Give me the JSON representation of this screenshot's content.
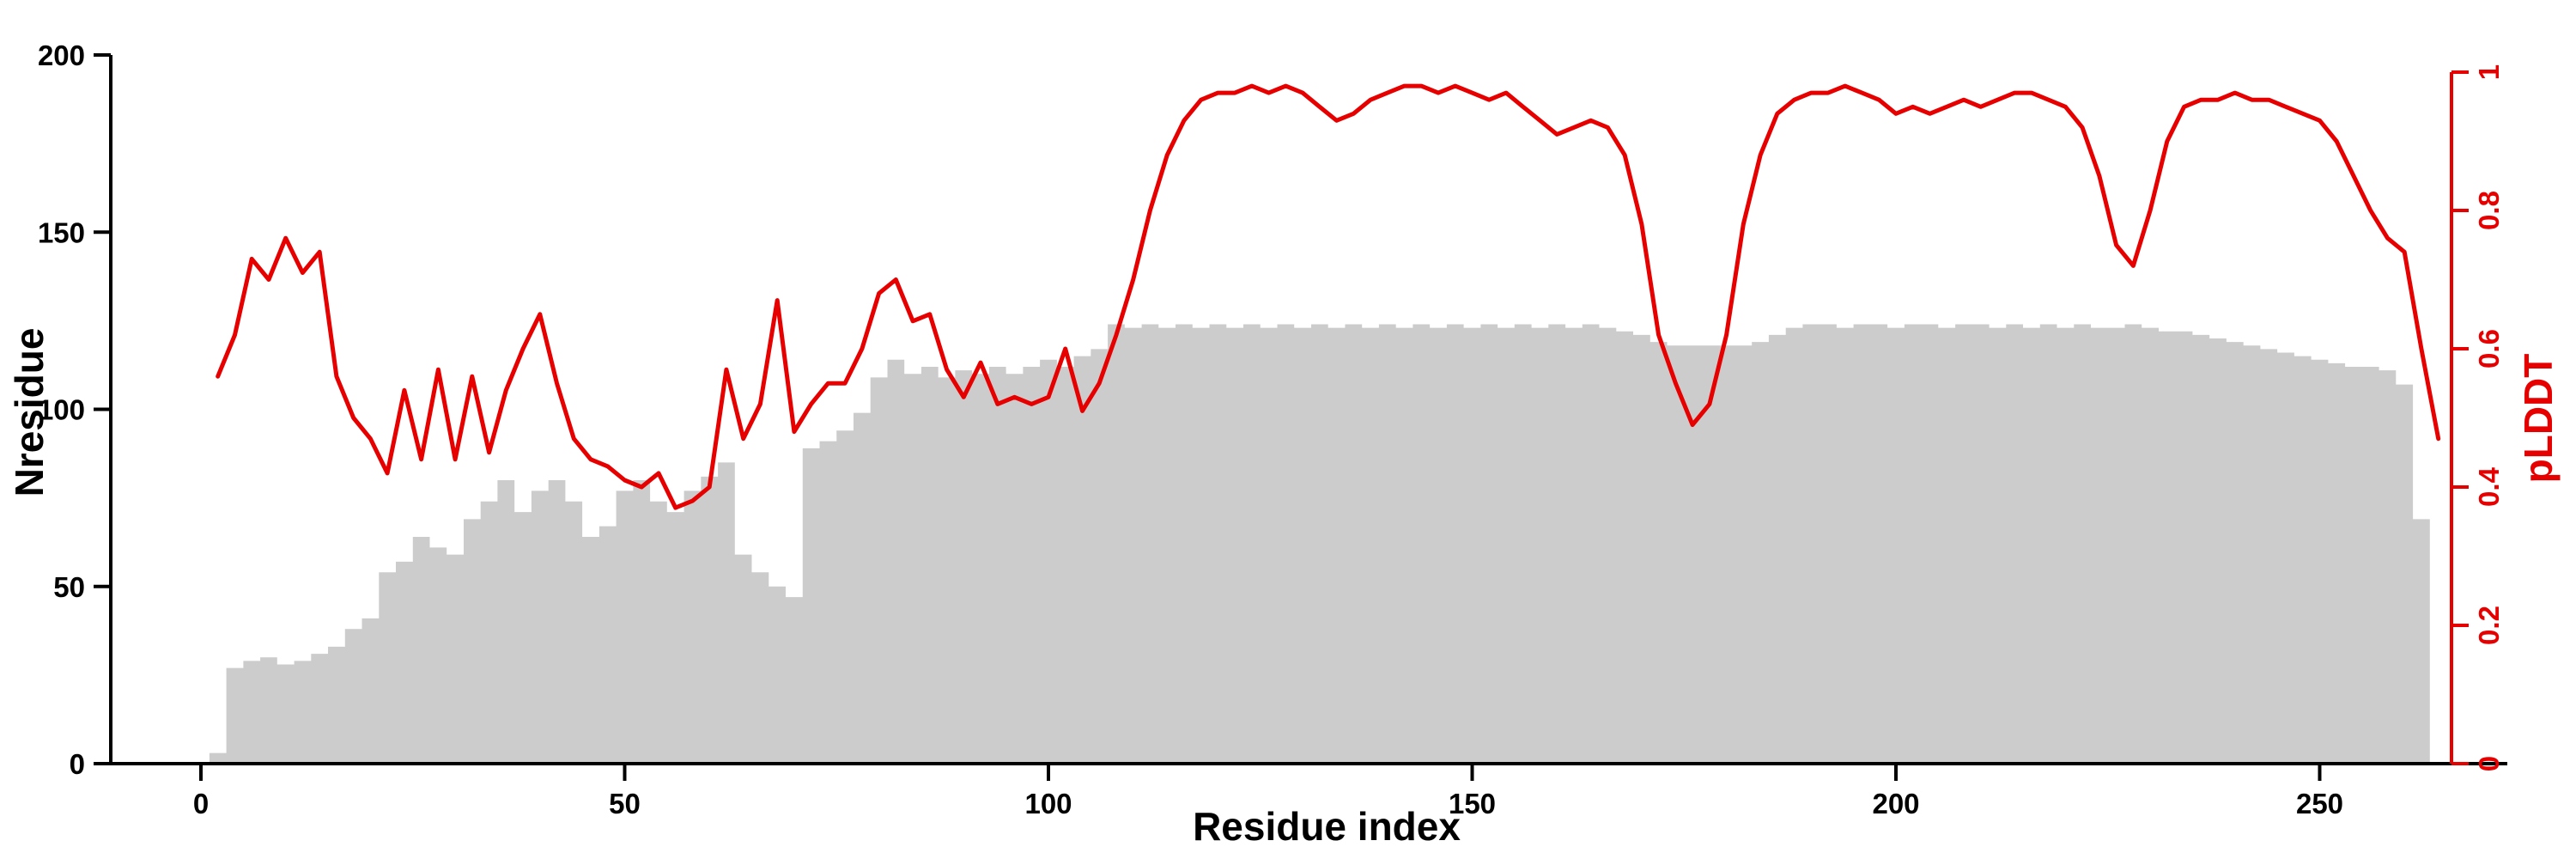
{
  "chart_data": {
    "type": "line",
    "title": "",
    "xlabel": "Residue index",
    "ylabel_left": "Nresidue",
    "ylabel_right": "pLDDT",
    "xlim": [
      0,
      270
    ],
    "ylim_left": [
      0,
      200
    ],
    "ylim_right": [
      0,
      1
    ],
    "x_ticks": [
      0,
      50,
      100,
      150,
      200,
      250
    ],
    "y_left_ticks": [
      0,
      50,
      100,
      150,
      200
    ],
    "y_right_ticks": [
      0,
      0.2,
      0.4,
      0.6,
      0.8,
      1
    ],
    "grid": false,
    "legend": "none",
    "colors": {
      "line": "#e60000",
      "area": "#cccccc",
      "axis": "#000000"
    },
    "x": [
      2,
      4,
      6,
      8,
      10,
      12,
      14,
      16,
      18,
      20,
      22,
      24,
      26,
      28,
      30,
      32,
      34,
      36,
      38,
      40,
      42,
      44,
      46,
      48,
      50,
      52,
      54,
      56,
      58,
      60,
      62,
      64,
      66,
      68,
      70,
      72,
      74,
      76,
      78,
      80,
      82,
      84,
      86,
      88,
      90,
      92,
      94,
      96,
      98,
      100,
      102,
      104,
      106,
      108,
      110,
      112,
      114,
      116,
      118,
      120,
      122,
      124,
      126,
      128,
      130,
      132,
      134,
      136,
      138,
      140,
      142,
      144,
      146,
      148,
      150,
      152,
      154,
      156,
      158,
      160,
      162,
      164,
      166,
      168,
      170,
      172,
      174,
      176,
      178,
      180,
      182,
      184,
      186,
      188,
      190,
      192,
      194,
      196,
      198,
      200,
      202,
      204,
      206,
      208,
      210,
      212,
      214,
      216,
      218,
      220,
      222,
      224,
      226,
      228,
      230,
      232,
      234,
      236,
      238,
      240,
      242,
      244,
      246,
      248,
      250,
      252,
      254,
      256,
      258,
      260,
      262,
      264
    ],
    "series": [
      {
        "name": "Nresidue",
        "style": "area",
        "axis": "left",
        "values": [
          3,
          27,
          29,
          30,
          28,
          29,
          31,
          33,
          38,
          41,
          54,
          57,
          64,
          61,
          59,
          69,
          74,
          80,
          71,
          77,
          80,
          74,
          64,
          67,
          77,
          80,
          74,
          71,
          77,
          81,
          85,
          59,
          54,
          50,
          47,
          89,
          91,
          94,
          99,
          109,
          114,
          110,
          112,
          109,
          111,
          110,
          112,
          110,
          112,
          114,
          112,
          115,
          117,
          124,
          123,
          124,
          123,
          124,
          123,
          124,
          123,
          124,
          123,
          124,
          123,
          124,
          123,
          124,
          123,
          124,
          123,
          124,
          123,
          124,
          123,
          124,
          123,
          124,
          123,
          124,
          123,
          124,
          123,
          122,
          121,
          119,
          118,
          118,
          118,
          118,
          118,
          119,
          121,
          123,
          124,
          124,
          123,
          124,
          124,
          123,
          124,
          124,
          123,
          124,
          124,
          123,
          124,
          123,
          124,
          123,
          124,
          123,
          123,
          124,
          123,
          122,
          122,
          121,
          120,
          119,
          118,
          117,
          116,
          115,
          114,
          113,
          112,
          112,
          111,
          107,
          69,
          0
        ]
      },
      {
        "name": "pLDDT",
        "style": "line",
        "axis": "right",
        "values": [
          0.56,
          0.62,
          0.73,
          0.7,
          0.76,
          0.71,
          0.74,
          0.56,
          0.5,
          0.47,
          0.42,
          0.54,
          0.44,
          0.57,
          0.44,
          0.56,
          0.45,
          0.54,
          0.6,
          0.65,
          0.55,
          0.47,
          0.44,
          0.43,
          0.41,
          0.4,
          0.42,
          0.37,
          0.38,
          0.4,
          0.57,
          0.47,
          0.52,
          0.67,
          0.48,
          0.52,
          0.55,
          0.55,
          0.6,
          0.68,
          0.7,
          0.64,
          0.65,
          0.57,
          0.53,
          0.58,
          0.52,
          0.53,
          0.52,
          0.53,
          0.6,
          0.51,
          0.55,
          0.62,
          0.7,
          0.8,
          0.88,
          0.93,
          0.96,
          0.97,
          0.97,
          0.98,
          0.97,
          0.98,
          0.97,
          0.95,
          0.93,
          0.94,
          0.96,
          0.97,
          0.98,
          0.98,
          0.97,
          0.98,
          0.97,
          0.96,
          0.97,
          0.95,
          0.93,
          0.91,
          0.92,
          0.93,
          0.92,
          0.88,
          0.78,
          0.62,
          0.55,
          0.49,
          0.52,
          0.62,
          0.78,
          0.88,
          0.94,
          0.96,
          0.97,
          0.97,
          0.98,
          0.97,
          0.96,
          0.94,
          0.95,
          0.94,
          0.95,
          0.96,
          0.95,
          0.96,
          0.97,
          0.97,
          0.96,
          0.95,
          0.92,
          0.85,
          0.75,
          0.72,
          0.8,
          0.9,
          0.95,
          0.96,
          0.96,
          0.97,
          0.96,
          0.96,
          0.95,
          0.94,
          0.93,
          0.9,
          0.85,
          0.8,
          0.76,
          0.74,
          0.6,
          0.47
        ]
      }
    ]
  }
}
